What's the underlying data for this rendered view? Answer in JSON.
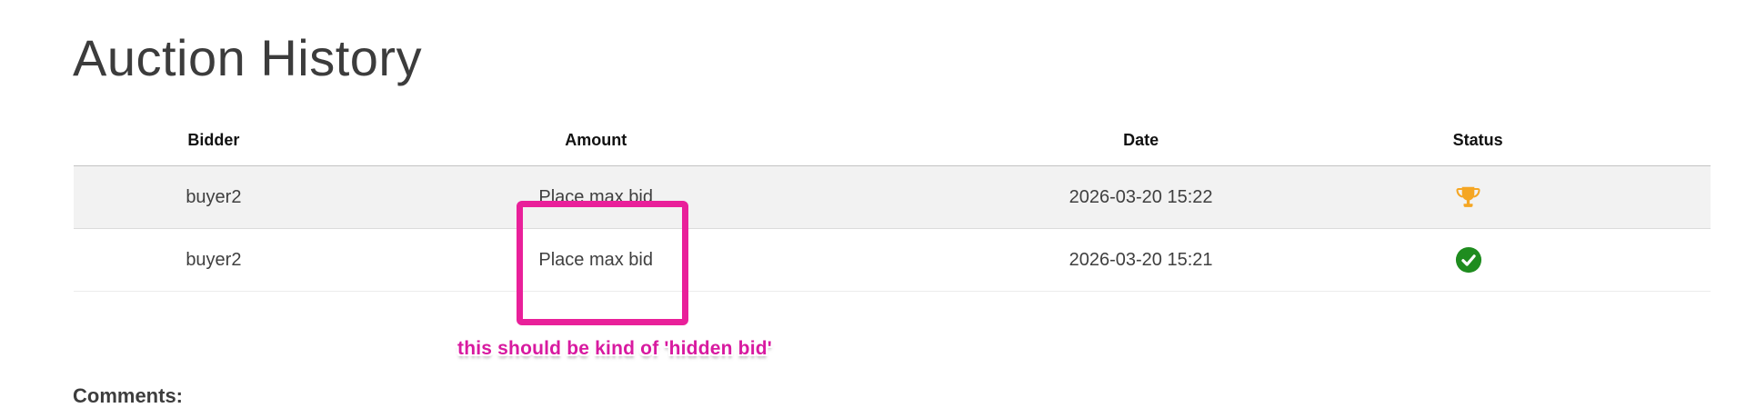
{
  "page": {
    "title": "Auction History",
    "comments_label": "Comments:"
  },
  "table": {
    "columns": [
      "Bidder",
      "Amount",
      "Date",
      "Status"
    ],
    "rows": [
      {
        "bidder": "buyer2",
        "amount": "Place max bid",
        "date": "2026-03-20 15:22",
        "status_icon": "trophy-icon"
      },
      {
        "bidder": "buyer2",
        "amount": "Place max bid",
        "date": "2026-03-20 15:21",
        "status_icon": "check-circle-icon"
      }
    ]
  },
  "annotation": {
    "note_text": "this should be kind of 'hidden bid'",
    "highlight_color": "#e9209a"
  },
  "colors": {
    "trophy_orange": "#f5a623",
    "check_green": "#1f8c1f",
    "row_stripe": "#f2f2f2"
  }
}
